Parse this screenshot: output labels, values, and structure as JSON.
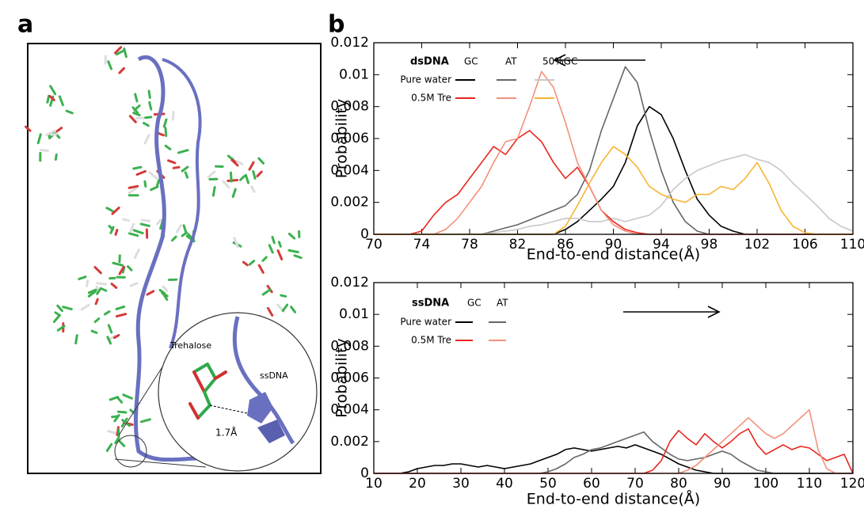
{
  "panel_labels": [
    "a",
    "b"
  ],
  "illustration": {
    "labels": [
      "Trehalose",
      "ssDNA",
      "1.7Å"
    ]
  },
  "chart_data": [
    {
      "type": "line",
      "legend_title": "dsDNA",
      "x_label": "End-to-end distance(Å)",
      "y_label": "Probability",
      "xlim": [
        70,
        110
      ],
      "xticks": [
        70,
        74,
        78,
        82,
        86,
        90,
        94,
        98,
        102,
        106,
        110
      ],
      "ylim": [
        0,
        0.012
      ],
      "yticks": [
        0,
        0.002,
        0.004,
        0.006,
        0.008,
        0.01,
        0.012
      ],
      "x": [
        70,
        71,
        72,
        73,
        74,
        75,
        76,
        77,
        78,
        79,
        80,
        81,
        82,
        83,
        84,
        85,
        86,
        87,
        88,
        89,
        90,
        91,
        92,
        93,
        94,
        95,
        96,
        97,
        98,
        99,
        100,
        101,
        102,
        103,
        104,
        105,
        106,
        107,
        108,
        109,
        110
      ],
      "groups": [
        {
          "name": "Pure water",
          "series": [
            {
              "name": "GC",
              "color": "#000000",
              "values": [
                0,
                0,
                0,
                0,
                0,
                0,
                0,
                0,
                0,
                0,
                0,
                0,
                0,
                0,
                0,
                0,
                0.0003,
                0.0008,
                0.0015,
                0.0022,
                0.003,
                0.0045,
                0.0068,
                0.008,
                0.0075,
                0.006,
                0.004,
                0.0022,
                0.0012,
                0.0005,
                0.0002,
                0,
                0,
                0,
                0,
                0,
                0,
                0,
                0,
                0,
                0
              ]
            },
            {
              "name": "AT",
              "color": "#666666",
              "values": [
                0,
                0,
                0,
                0,
                0,
                0,
                0,
                0,
                0,
                0,
                0.0002,
                0.0004,
                0.0006,
                0.0009,
                0.0012,
                0.0015,
                0.0018,
                0.0025,
                0.004,
                0.0065,
                0.0085,
                0.0105,
                0.0095,
                0.0065,
                0.004,
                0.002,
                0.0008,
                0.0002,
                0,
                0,
                0,
                0,
                0,
                0,
                0,
                0,
                0,
                0,
                0,
                0,
                0
              ]
            },
            {
              "name": "50%GC",
              "color": "#c8c8c8",
              "values": [
                0,
                0,
                0,
                0,
                0,
                0,
                0,
                0,
                0,
                0,
                0.0001,
                0.0002,
                0.0003,
                0.0005,
                0.0006,
                0.0008,
                0.001,
                0.001,
                0.0008,
                0.0008,
                0.001,
                0.0008,
                0.001,
                0.0012,
                0.0018,
                0.0028,
                0.0035,
                0.004,
                0.0043,
                0.0046,
                0.0048,
                0.005,
                0.0047,
                0.0045,
                0.004,
                0.0032,
                0.0025,
                0.0018,
                0.001,
                0.0005,
                0.0002
              ]
            }
          ]
        },
        {
          "name": "0.5M Tre",
          "series": [
            {
              "name": "GC",
              "color": "#e8261e",
              "values": [
                0,
                0,
                0,
                0,
                0.0002,
                0.0012,
                0.002,
                0.0025,
                0.0035,
                0.0045,
                0.0055,
                0.005,
                0.006,
                0.0065,
                0.0058,
                0.0045,
                0.0035,
                0.0042,
                0.003,
                0.0015,
                0.0008,
                0.0003,
                0.0001,
                0,
                0,
                0,
                0,
                0,
                0,
                0,
                0,
                0,
                0,
                0,
                0,
                0,
                0,
                0,
                0,
                0,
                0
              ]
            },
            {
              "name": "AT",
              "color": "#f4907a",
              "values": [
                0,
                0,
                0,
                0,
                0,
                0,
                0.0003,
                0.001,
                0.002,
                0.003,
                0.0045,
                0.0058,
                0.006,
                0.008,
                0.0102,
                0.0092,
                0.007,
                0.0045,
                0.003,
                0.0015,
                0.0006,
                0.0002,
                0,
                0,
                0,
                0,
                0,
                0,
                0,
                0,
                0,
                0,
                0,
                0,
                0,
                0,
                0,
                0,
                0,
                0,
                0
              ]
            },
            {
              "name": "50%GC",
              "color": "#f8b432",
              "values": [
                0,
                0,
                0,
                0,
                0,
                0,
                0,
                0,
                0,
                0,
                0,
                0,
                0,
                0,
                0,
                0,
                0.0005,
                0.0018,
                0.0032,
                0.0045,
                0.0055,
                0.005,
                0.0042,
                0.003,
                0.0025,
                0.0022,
                0.002,
                0.0025,
                0.0025,
                0.003,
                0.0028,
                0.0035,
                0.0045,
                0.0032,
                0.0015,
                0.0005,
                0.0001,
                0,
                0,
                0,
                0
              ]
            }
          ]
        }
      ]
    },
    {
      "type": "line",
      "legend_title": "ssDNA",
      "x_label": "End-to-end distance(Å)",
      "y_label": "Probability",
      "xlim": [
        10,
        120
      ],
      "xticks": [
        10,
        20,
        30,
        40,
        50,
        60,
        70,
        80,
        90,
        100,
        110,
        120
      ],
      "ylim": [
        0,
        0.012
      ],
      "yticks": [
        0,
        0.002,
        0.004,
        0.006,
        0.008,
        0.01,
        0.012
      ],
      "x": [
        10,
        12,
        14,
        16,
        18,
        20,
        22,
        24,
        26,
        28,
        30,
        32,
        34,
        36,
        38,
        40,
        42,
        44,
        46,
        48,
        50,
        52,
        54,
        56,
        58,
        60,
        62,
        64,
        66,
        68,
        70,
        72,
        74,
        76,
        78,
        80,
        82,
        84,
        86,
        88,
        90,
        92,
        94,
        96,
        98,
        100,
        102,
        104,
        106,
        108,
        110,
        112,
        114,
        116,
        118,
        120
      ],
      "groups": [
        {
          "name": "Pure water",
          "series": [
            {
              "name": "GC",
              "color": "#000000",
              "values": [
                0,
                0,
                0,
                0,
                0.0001,
                0.0003,
                0.0004,
                0.0005,
                0.0005,
                0.0006,
                0.0006,
                0.0005,
                0.0004,
                0.0005,
                0.0004,
                0.0003,
                0.0004,
                0.0005,
                0.0006,
                0.0008,
                0.001,
                0.0012,
                0.0015,
                0.0016,
                0.0015,
                0.0014,
                0.0015,
                0.0016,
                0.0017,
                0.0016,
                0.0018,
                0.0016,
                0.0014,
                0.0012,
                0.0009,
                0.0006,
                0.0004,
                0.0002,
                0.0001,
                0,
                0,
                0,
                0,
                0,
                0,
                0,
                0,
                0,
                0,
                0,
                0,
                0,
                0,
                0,
                0,
                0
              ]
            },
            {
              "name": "AT",
              "color": "#666666",
              "values": [
                0,
                0,
                0,
                0,
                0,
                0,
                0,
                0,
                0,
                0,
                0,
                0,
                0,
                0,
                0,
                0,
                0,
                0,
                0,
                0,
                0.0001,
                0.0003,
                0.0006,
                0.001,
                0.0012,
                0.0015,
                0.0016,
                0.0018,
                0.002,
                0.0022,
                0.0024,
                0.0026,
                0.002,
                0.0016,
                0.0012,
                0.0009,
                0.0008,
                0.0009,
                0.001,
                0.0012,
                0.0014,
                0.0012,
                0.0008,
                0.0005,
                0.0002,
                0.0001,
                0,
                0,
                0,
                0,
                0,
                0,
                0,
                0,
                0,
                0
              ]
            }
          ]
        },
        {
          "name": "0.5M Tre",
          "series": [
            {
              "name": "GC",
              "color": "#e8261e",
              "values": [
                0,
                0,
                0,
                0,
                0,
                0,
                0,
                0,
                0,
                0,
                0,
                0,
                0,
                0,
                0,
                0,
                0,
                0,
                0,
                0,
                0,
                0,
                0,
                0,
                0,
                0,
                0,
                0,
                0,
                0,
                0,
                0,
                0.0002,
                0.0008,
                0.002,
                0.0027,
                0.0022,
                0.0018,
                0.0025,
                0.002,
                0.0016,
                0.002,
                0.0025,
                0.0028,
                0.0018,
                0.0012,
                0.0015,
                0.0018,
                0.0015,
                0.0017,
                0.0016,
                0.0012,
                0.0008,
                0.001,
                0.0012,
                0
              ]
            },
            {
              "name": "AT",
              "color": "#f4907a",
              "values": [
                0,
                0,
                0,
                0,
                0,
                0,
                0,
                0,
                0,
                0,
                0,
                0,
                0,
                0,
                0,
                0,
                0,
                0,
                0,
                0,
                0,
                0,
                0,
                0,
                0,
                0,
                0,
                0,
                0,
                0,
                0,
                0,
                0,
                0,
                0,
                0,
                0.0002,
                0.0005,
                0.001,
                0.0015,
                0.002,
                0.0025,
                0.003,
                0.0035,
                0.003,
                0.0025,
                0.0022,
                0.0025,
                0.003,
                0.0035,
                0.004,
                0.0015,
                0.0003,
                0,
                0,
                0
              ]
            }
          ]
        }
      ]
    }
  ]
}
